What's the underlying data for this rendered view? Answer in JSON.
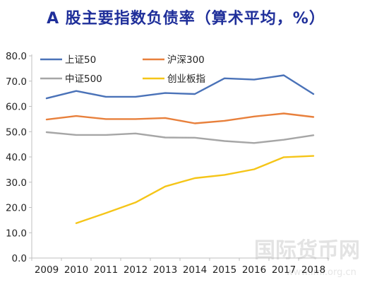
{
  "chart_data": {
    "type": "line",
    "title": "A 股主要指数负债率（算术平均，%）",
    "xlabel": "",
    "ylabel": "",
    "ylim": [
      0,
      80
    ],
    "yticks": [
      "0.0",
      "10.0",
      "20.0",
      "30.0",
      "40.0",
      "50.0",
      "60.0",
      "70.0",
      "80.0"
    ],
    "categories": [
      "2009",
      "2010",
      "2011",
      "2012",
      "2013",
      "2014",
      "2015",
      "2016",
      "2017",
      "2018"
    ],
    "grid": false,
    "legend_position": "top-left",
    "series": [
      {
        "name": "上证50",
        "color": "#4a72b8",
        "values": [
          63.2,
          66.1,
          63.8,
          63.8,
          65.3,
          64.9,
          71.1,
          70.6,
          72.3,
          64.9
        ]
      },
      {
        "name": "沪深300",
        "color": "#e8803c",
        "values": [
          54.8,
          56.2,
          55.0,
          55.0,
          55.4,
          53.3,
          54.3,
          56.0,
          57.2,
          55.8
        ]
      },
      {
        "name": "中证500",
        "color": "#a6a6a6",
        "values": [
          49.8,
          48.7,
          48.7,
          49.3,
          47.7,
          47.6,
          46.3,
          45.5,
          46.8,
          48.6
        ]
      },
      {
        "name": "创业板指",
        "color": "#f5c518",
        "values": [
          null,
          13.8,
          17.8,
          22.0,
          28.3,
          31.6,
          32.9,
          35.1,
          39.9,
          40.4
        ]
      }
    ]
  },
  "watermark": {
    "text": "国际货币网",
    "subtext": "www.imi.org.cn"
  },
  "colors": {
    "title": "#1f2f9a",
    "axis": "#bfbfbf",
    "text": "#222222"
  }
}
